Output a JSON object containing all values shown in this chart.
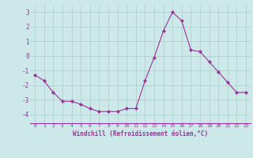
{
  "x": [
    0,
    1,
    2,
    3,
    4,
    5,
    6,
    7,
    8,
    9,
    10,
    11,
    12,
    13,
    14,
    15,
    16,
    17,
    18,
    19,
    20,
    21,
    22,
    23
  ],
  "y": [
    -1.3,
    -1.7,
    -2.5,
    -3.1,
    -3.1,
    -3.3,
    -3.6,
    -3.8,
    -3.8,
    -3.8,
    -3.6,
    -3.6,
    -1.7,
    -0.1,
    1.7,
    3.0,
    2.4,
    0.4,
    0.3,
    -0.4,
    -1.1,
    -1.8,
    -2.5,
    -2.5
  ],
  "line_color": "#993399",
  "marker": "D",
  "marker_size": 2.0,
  "bg_color": "#cce8e8",
  "grid_color": "#aacccc",
  "xlabel": "Windchill (Refroidissement éolien,°C)",
  "xlabel_color": "#993399",
  "tick_color": "#993399",
  "xlim": [
    -0.5,
    23.5
  ],
  "ylim": [
    -4.6,
    3.5
  ],
  "yticks": [
    -4,
    -3,
    -2,
    -1,
    0,
    1,
    2,
    3
  ],
  "xticks": [
    0,
    1,
    2,
    3,
    4,
    5,
    6,
    7,
    8,
    9,
    10,
    11,
    12,
    13,
    14,
    15,
    16,
    17,
    18,
    19,
    20,
    21,
    22,
    23
  ]
}
